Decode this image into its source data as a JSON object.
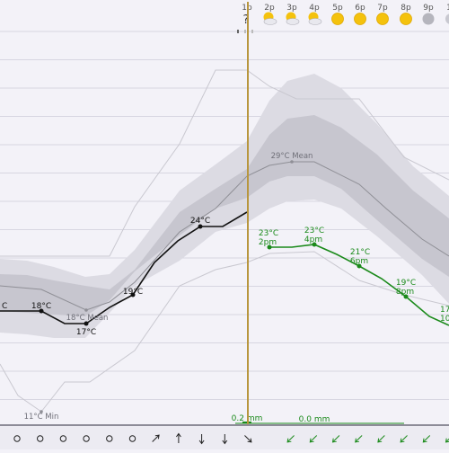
{
  "header": {
    "hours": [
      "1p",
      "2p",
      "3p",
      "4p",
      "5p",
      "6p",
      "7p",
      "8p",
      "9p",
      "1"
    ],
    "weather_icons": [
      "unknown-icon",
      "partly-cloudy-icon",
      "partly-cloudy-icon",
      "partly-cloudy-icon",
      "sun-icon",
      "sun-icon",
      "sun-icon",
      "sun-icon",
      "cloudy-icon",
      "partly-hidden-icon"
    ],
    "now_marker": "?"
  },
  "chart": {
    "colors": {
      "background": "#f3f2f8",
      "grid": "#d7d6e1",
      "band_outer": "#dcdbe3",
      "band_inner": "#c7c6cf",
      "observed_line": "#111111",
      "forecast_line": "#1a8a1a",
      "now_line": "#b8963e",
      "mean_line": "#8f8f96",
      "minmax_line": "#c9c8d0"
    },
    "observed_labels": [
      {
        "text": "C"
      },
      {
        "text": "18°C"
      },
      {
        "text": "17°C"
      },
      {
        "text": "19°C"
      },
      {
        "text": "24°C"
      }
    ],
    "forecast_labels": [
      {
        "temp": "23°C",
        "time": "2pm"
      },
      {
        "temp": "23°C",
        "time": "4pm"
      },
      {
        "temp": "21°C",
        "time": "6pm"
      },
      {
        "temp": "19°C",
        "time": "8pm"
      },
      {
        "temp": "17",
        "time": "10"
      }
    ],
    "mean_labels": [
      "18°C Mean",
      "29°C Mean"
    ],
    "min_label": "11°C Min",
    "precip_labels": [
      "0.2 mm",
      "0.0 mm"
    ]
  },
  "footer": {
    "wind_icons_past": [
      "calm-icon",
      "calm-icon",
      "calm-icon",
      "calm-icon",
      "calm-icon",
      "calm-icon",
      "arrow-ne-icon",
      "arrow-n-icon",
      "arrow-s-icon",
      "arrow-s-icon",
      "arrow-se-icon"
    ],
    "wind_icons_forecast": [
      "arrow-sw-icon",
      "arrow-sw-icon",
      "arrow-sw-icon",
      "arrow-sw-icon",
      "arrow-sw-icon",
      "arrow-sw-icon",
      "arrow-sw-icon",
      "arrow-sw-icon"
    ]
  }
}
